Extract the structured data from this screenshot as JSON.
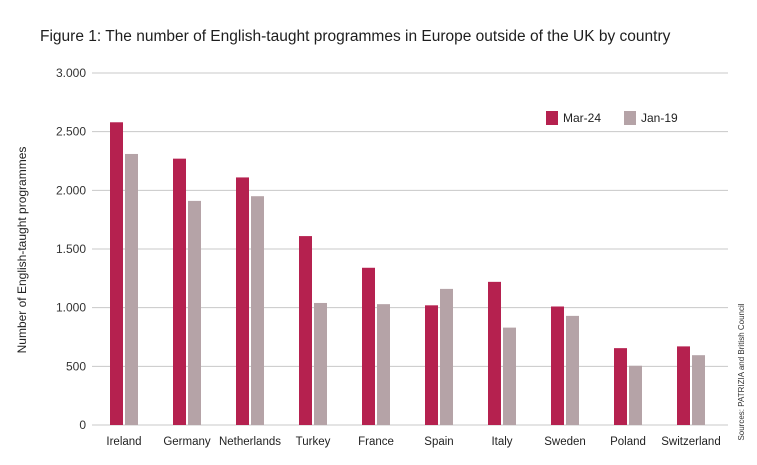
{
  "title": "Figure 1: The number of English-taught programmes in Europe outside of the UK by country",
  "source": "Sources: PATRIZIA and British Council",
  "chart_data": {
    "type": "bar",
    "title": "Figure 1: The number of English-taught programmes in Europe outside of the UK by country",
    "xlabel": "",
    "ylabel": "Number of English-taught programmes",
    "ylim": [
      0,
      3000
    ],
    "yticks": [
      0,
      500,
      1000,
      1500,
      2000,
      2500,
      3000
    ],
    "ytick_labels": [
      "0",
      "500",
      "1.000",
      "1.500",
      "2.000",
      "2.500",
      "3.000"
    ],
    "categories": [
      "Ireland",
      "Germany",
      "Netherlands",
      "Turkey",
      "France",
      "Spain",
      "Italy",
      "Sweden",
      "Poland",
      "Switzerland"
    ],
    "series": [
      {
        "name": "Mar-24",
        "color": "#b5214f",
        "values": [
          2580,
          2270,
          2110,
          1610,
          1340,
          1020,
          1220,
          1010,
          655,
          670
        ]
      },
      {
        "name": "Jan-19",
        "color": "#b5a3a7",
        "values": [
          2310,
          1910,
          1950,
          1040,
          1030,
          1160,
          830,
          930,
          505,
          595
        ]
      }
    ],
    "grid": "horizontal",
    "legend_position": "top-right"
  }
}
